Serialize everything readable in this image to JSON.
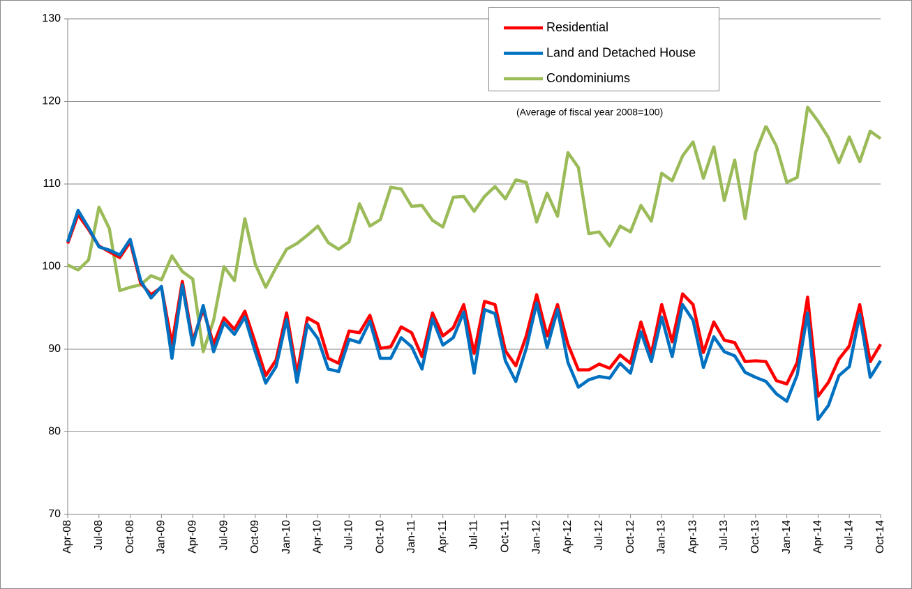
{
  "chart_data": {
    "type": "line",
    "annotations": [
      "(Average of fiscal year 2008=100)"
    ],
    "categories": [
      "Apr-08",
      null,
      null,
      "Jul-08",
      null,
      null,
      "Oct-08",
      null,
      null,
      "Jan-09",
      null,
      null,
      "Apr-09",
      null,
      null,
      "Jul-09",
      null,
      null,
      "Oct-09",
      null,
      null,
      "Jan-10",
      null,
      null,
      "Apr-10",
      null,
      null,
      "Jul-10",
      null,
      null,
      "Oct-10",
      null,
      null,
      "Jan-11",
      null,
      null,
      "Apr-11",
      null,
      null,
      "Jul-11",
      null,
      null,
      "Oct-11",
      null,
      null,
      "Jan-12",
      null,
      null,
      "Apr-12",
      null,
      null,
      "Jul-12",
      null,
      null,
      "Oct-12",
      null,
      null,
      "Jan-13",
      null,
      null,
      "Apr-13",
      null,
      null,
      "Jul-13",
      null,
      null,
      "Oct-13",
      null,
      null,
      "Jan-14",
      null,
      null,
      "Apr-14",
      null,
      null,
      "Jul-14",
      null,
      null,
      "Oct-14"
    ],
    "series": [
      {
        "name": "Residential",
        "color": "#ff0000",
        "values": [
          102.8,
          106.3,
          104.5,
          102.5,
          101.8,
          101.1,
          103.0,
          98.0,
          96.6,
          97.5,
          90.6,
          98.2,
          91.0,
          94.8,
          90.6,
          93.8,
          92.4,
          94.6,
          90.8,
          86.8,
          88.7,
          94.4,
          87.0,
          93.8,
          93.1,
          88.9,
          88.3,
          92.2,
          92.0,
          94.1,
          90.1,
          90.3,
          92.7,
          92.0,
          89.1,
          94.4,
          91.6,
          92.6,
          95.4,
          89.5,
          95.8,
          95.4,
          89.8,
          88.0,
          91.6,
          96.6,
          91.6,
          95.4,
          90.6,
          87.5,
          87.5,
          88.2,
          87.7,
          89.3,
          88.3,
          93.3,
          89.4,
          95.4,
          90.9,
          96.7,
          95.4,
          89.6,
          93.3,
          91.1,
          90.8,
          88.5,
          88.6,
          88.5,
          86.2,
          85.8,
          88.4,
          96.3,
          84.3,
          86.0,
          88.8,
          90.4,
          95.4,
          88.5,
          90.6
        ]
      },
      {
        "name": "Land and Detached House",
        "color": "#0070c0",
        "values": [
          103.0,
          106.8,
          104.7,
          102.4,
          102.0,
          101.4,
          103.3,
          98.3,
          96.2,
          97.6,
          88.9,
          97.8,
          90.5,
          95.3,
          89.7,
          93.2,
          91.8,
          93.9,
          89.7,
          85.9,
          87.9,
          93.6,
          86.0,
          93.0,
          91.3,
          87.6,
          87.3,
          91.2,
          90.8,
          93.4,
          88.9,
          88.9,
          91.4,
          90.3,
          87.6,
          93.7,
          90.5,
          91.4,
          94.5,
          87.1,
          94.8,
          94.3,
          88.6,
          86.1,
          90.1,
          95.6,
          90.2,
          94.8,
          88.4,
          85.4,
          86.3,
          86.7,
          86.5,
          88.3,
          87.1,
          92.1,
          88.5,
          93.9,
          89.1,
          95.4,
          93.5,
          87.8,
          91.5,
          89.7,
          89.2,
          87.2,
          86.6,
          86.1,
          84.6,
          83.7,
          86.9,
          94.4,
          81.5,
          83.2,
          86.8,
          87.9,
          94.2,
          86.6,
          88.6
        ]
      },
      {
        "name": "Condominiums",
        "color": "#9bbb59",
        "values": [
          100.2,
          99.6,
          100.8,
          107.2,
          104.6,
          97.1,
          97.5,
          97.8,
          98.9,
          98.4,
          101.3,
          99.4,
          98.5,
          89.7,
          93.5,
          100.0,
          98.3,
          105.8,
          100.3,
          97.5,
          99.9,
          102.1,
          102.8,
          103.8,
          104.9,
          102.9,
          102.1,
          103.0,
          107.6,
          104.9,
          105.7,
          109.6,
          109.4,
          107.3,
          107.4,
          105.6,
          104.8,
          108.4,
          108.5,
          106.7,
          108.5,
          109.7,
          108.2,
          110.5,
          110.2,
          105.4,
          108.9,
          106.1,
          113.8,
          112.0,
          104.0,
          104.2,
          102.5,
          104.9,
          104.2,
          107.4,
          105.5,
          111.3,
          110.4,
          113.4,
          115.1,
          110.7,
          114.5,
          108.0,
          112.9,
          105.8,
          113.8,
          117.0,
          114.6,
          110.2,
          110.8,
          119.3,
          117.6,
          115.6,
          112.6,
          115.7,
          112.7,
          116.4,
          115.5
        ]
      }
    ],
    "ylim": [
      70,
      130
    ],
    "yticks": [
      70,
      80,
      90,
      100,
      110,
      120,
      130
    ],
    "grid": true,
    "legend": "top"
  }
}
